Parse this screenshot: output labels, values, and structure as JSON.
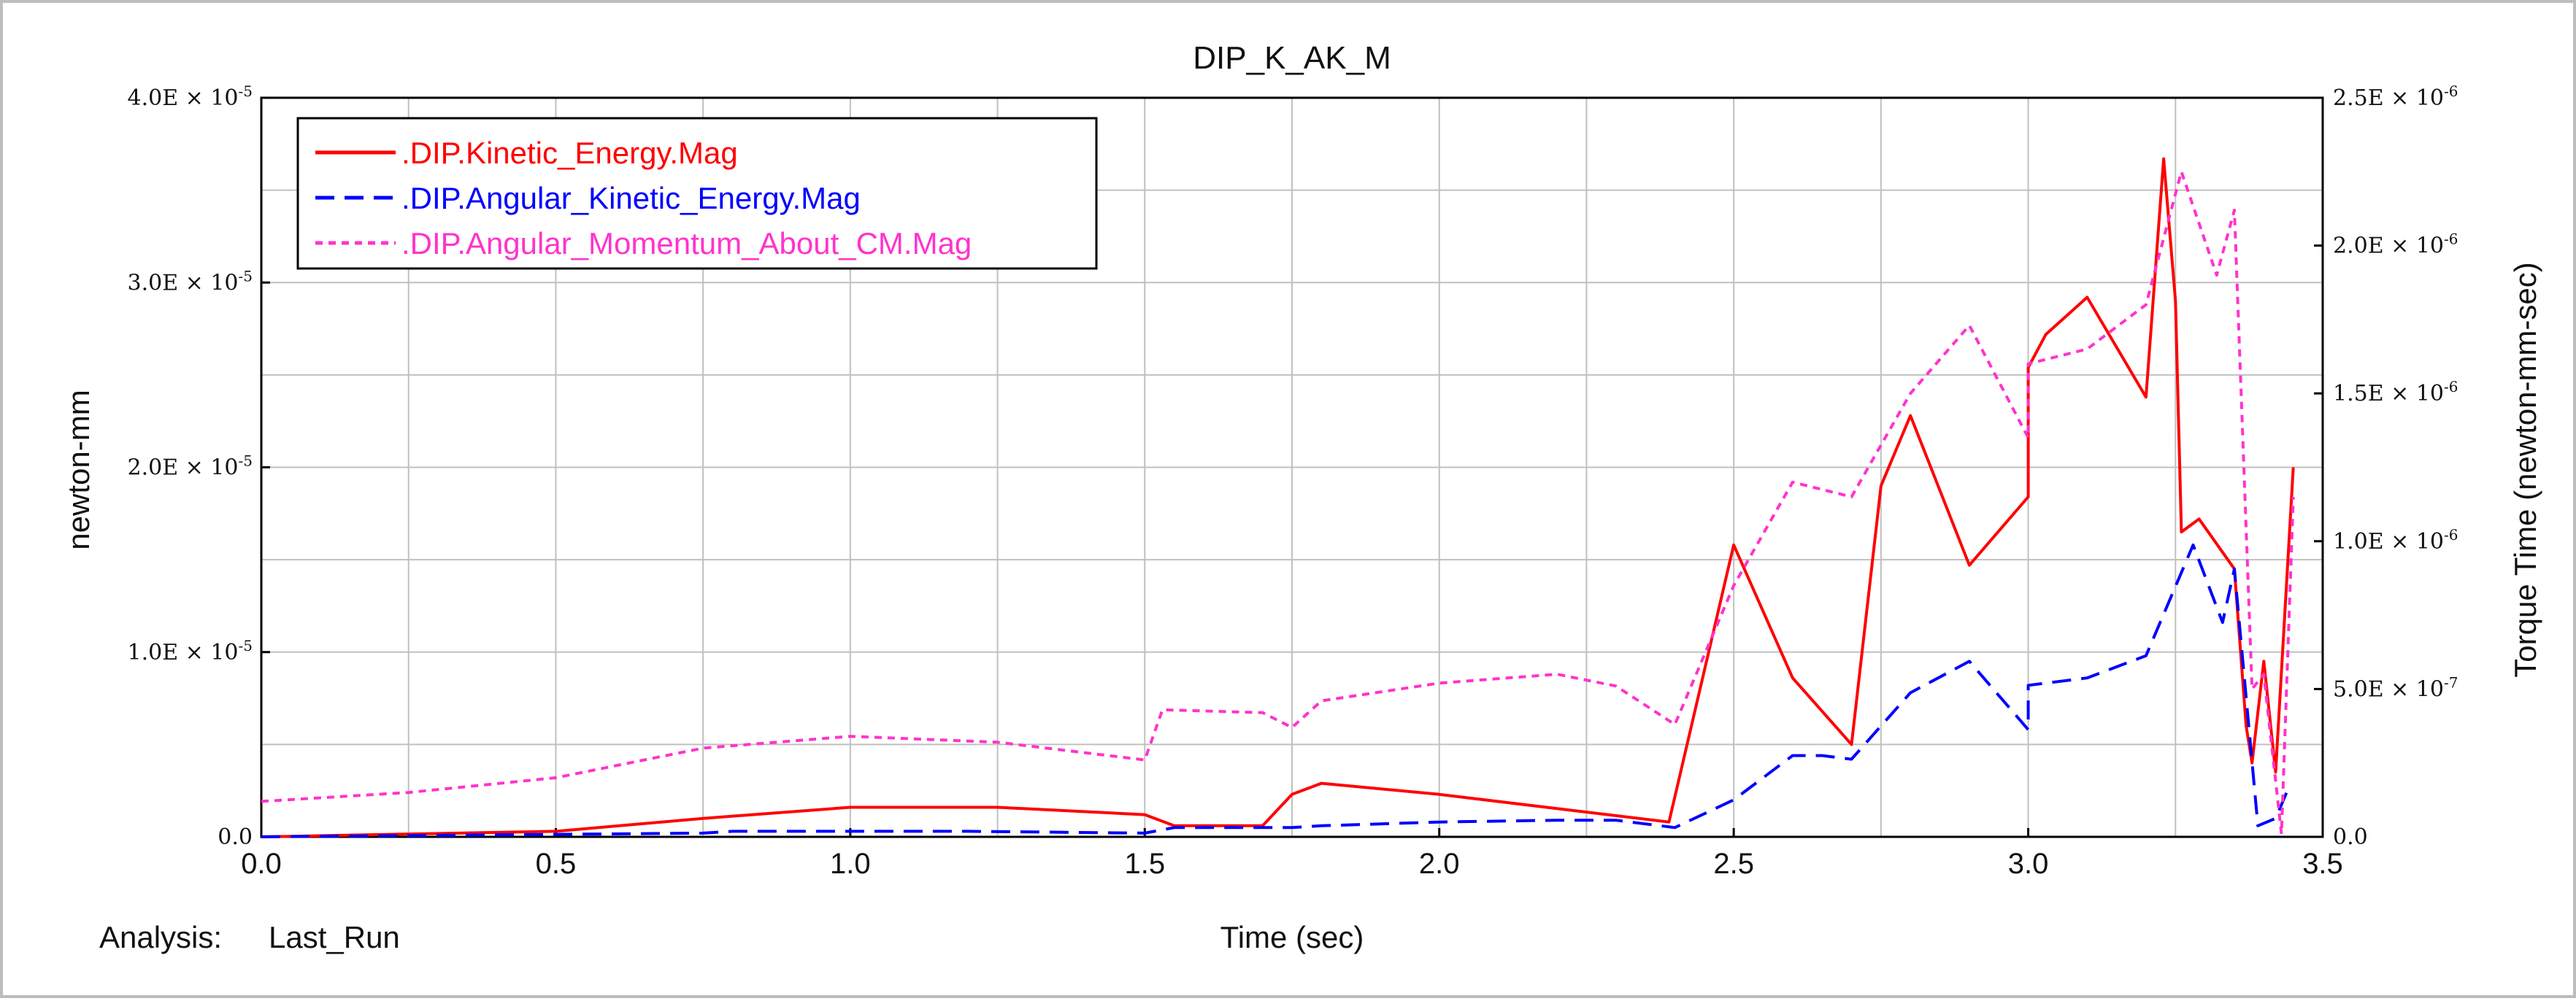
{
  "chart_data": {
    "type": "line",
    "title": "DIP_K_AK_M",
    "xlabel": "Time (sec)",
    "ylabel": "newton-mm",
    "y2label": "Torque Time (newton-mm-sec)",
    "xlim": [
      0,
      3.5
    ],
    "ylim": [
      0,
      4e-05
    ],
    "y2lim": [
      0,
      2.5e-06
    ],
    "grid": true,
    "legend_position": "top-left",
    "x_ticks": [
      "0.0",
      "0.5",
      "1.0",
      "1.5",
      "2.0",
      "2.5",
      "3.0",
      "3.5"
    ],
    "y_ticks": [
      {
        "value": 0,
        "mantissa": "0.0",
        "exp": ""
      },
      {
        "value": 1e-05,
        "mantissa": "1.0E × 10",
        "exp": "-5"
      },
      {
        "value": 2e-05,
        "mantissa": "2.0E × 10",
        "exp": "-5"
      },
      {
        "value": 3e-05,
        "mantissa": "3.0E × 10",
        "exp": "-5"
      },
      {
        "value": 4e-05,
        "mantissa": "4.0E × 10",
        "exp": "-5"
      }
    ],
    "y2_ticks": [
      {
        "value": 0,
        "mantissa": "0.0",
        "exp": ""
      },
      {
        "value": 5e-07,
        "mantissa": "5.0E × 10",
        "exp": "-7"
      },
      {
        "value": 1e-06,
        "mantissa": "1.0E × 10",
        "exp": "-6"
      },
      {
        "value": 1.5e-06,
        "mantissa": "1.5E × 10",
        "exp": "-6"
      },
      {
        "value": 2e-06,
        "mantissa": "2.0E × 10",
        "exp": "-6"
      },
      {
        "value": 2.5e-06,
        "mantissa": "2.5E × 10",
        "exp": "-6"
      }
    ],
    "series": [
      {
        "name": ".DIP.Kinetic_Energy.Mag",
        "axis": "left",
        "color": "#ff0000",
        "dash": "solid",
        "points": [
          [
            0.0,
            0.0
          ],
          [
            0.5,
            3e-07
          ],
          [
            0.75,
            1e-06
          ],
          [
            1.0,
            1.6e-06
          ],
          [
            1.25,
            1.6e-06
          ],
          [
            1.5,
            1.2e-06
          ],
          [
            1.55,
            6e-07
          ],
          [
            1.7,
            6e-07
          ],
          [
            1.75,
            2.3e-06
          ],
          [
            1.8,
            2.9e-06
          ],
          [
            2.0,
            2.3e-06
          ],
          [
            2.39,
            8e-07
          ],
          [
            2.5,
            1.58e-05
          ],
          [
            2.6,
            8.6e-06
          ],
          [
            2.7,
            5e-06
          ],
          [
            2.75,
            1.9e-05
          ],
          [
            2.8,
            2.28e-05
          ],
          [
            2.9,
            1.47e-05
          ],
          [
            3.0,
            1.84e-05
          ],
          [
            3.0,
            2.54e-05
          ],
          [
            3.03,
            2.72e-05
          ],
          [
            3.1,
            2.92e-05
          ],
          [
            3.2,
            2.38e-05
          ],
          [
            3.23,
            3.67e-05
          ],
          [
            3.25,
            2.9e-05
          ],
          [
            3.26,
            1.65e-05
          ],
          [
            3.29,
            1.72e-05
          ],
          [
            3.35,
            1.45e-05
          ],
          [
            3.37,
            6e-06
          ],
          [
            3.38,
            4e-06
          ],
          [
            3.4,
            9.5e-06
          ],
          [
            3.42,
            3.5e-06
          ],
          [
            3.45,
            2e-05
          ]
        ]
      },
      {
        "name": ".DIP.Angular_Kinetic_Energy.Mag",
        "axis": "left",
        "color": "#0000ff",
        "dash": "dashed",
        "points": [
          [
            0.0,
            0.0
          ],
          [
            0.75,
            2e-07
          ],
          [
            0.8,
            3e-07
          ],
          [
            1.0,
            3e-07
          ],
          [
            1.2,
            3e-07
          ],
          [
            1.5,
            2e-07
          ],
          [
            1.55,
            5e-07
          ],
          [
            1.75,
            5e-07
          ],
          [
            1.8,
            6e-07
          ],
          [
            2.0,
            8e-07
          ],
          [
            2.2,
            9e-07
          ],
          [
            2.3,
            9e-07
          ],
          [
            2.4,
            5e-07
          ],
          [
            2.5,
            2e-06
          ],
          [
            2.6,
            4.4e-06
          ],
          [
            2.65,
            4.4e-06
          ],
          [
            2.7,
            4.2e-06
          ],
          [
            2.8,
            7.8e-06
          ],
          [
            2.9,
            9.5e-06
          ],
          [
            3.0,
            5.8e-06
          ],
          [
            3.0,
            8.2e-06
          ],
          [
            3.1,
            8.6e-06
          ],
          [
            3.2,
            9.8e-06
          ],
          [
            3.28,
            1.58e-05
          ],
          [
            3.33,
            1.16e-05
          ],
          [
            3.35,
            1.45e-05
          ],
          [
            3.39,
            6e-07
          ],
          [
            3.42,
            1e-06
          ],
          [
            3.44,
            2.5e-06
          ]
        ]
      },
      {
        "name": ".DIP.Angular_Momentum_About_CM.Mag",
        "axis": "right",
        "color": "#ff33cc",
        "dash": "dotted",
        "points": [
          [
            0.0,
            1.2e-07
          ],
          [
            0.25,
            1.5e-07
          ],
          [
            0.5,
            2e-07
          ],
          [
            0.75,
            3e-07
          ],
          [
            1.0,
            3.4e-07
          ],
          [
            1.25,
            3.2e-07
          ],
          [
            1.5,
            2.6e-07
          ],
          [
            1.53,
            4.3e-07
          ],
          [
            1.7,
            4.2e-07
          ],
          [
            1.75,
            3.7e-07
          ],
          [
            1.8,
            4.6e-07
          ],
          [
            2.0,
            5.2e-07
          ],
          [
            2.2,
            5.5e-07
          ],
          [
            2.3,
            5.1e-07
          ],
          [
            2.4,
            3.8e-07
          ],
          [
            2.5,
            8.5e-07
          ],
          [
            2.6,
            1.2e-06
          ],
          [
            2.7,
            1.15e-06
          ],
          [
            2.8,
            1.5e-06
          ],
          [
            2.9,
            1.73e-06
          ],
          [
            3.0,
            1.35e-06
          ],
          [
            3.0,
            1.6e-06
          ],
          [
            3.1,
            1.65e-06
          ],
          [
            3.2,
            1.8e-06
          ],
          [
            3.26,
            2.25e-06
          ],
          [
            3.32,
            1.9e-06
          ],
          [
            3.35,
            2.12e-06
          ],
          [
            3.38,
            5e-07
          ],
          [
            3.4,
            5.5e-07
          ],
          [
            3.43,
            1e-08
          ],
          [
            3.45,
            1.15e-06
          ]
        ]
      }
    ]
  },
  "footer": {
    "analysis_label": "Analysis:",
    "analysis_value": "Last_Run"
  }
}
